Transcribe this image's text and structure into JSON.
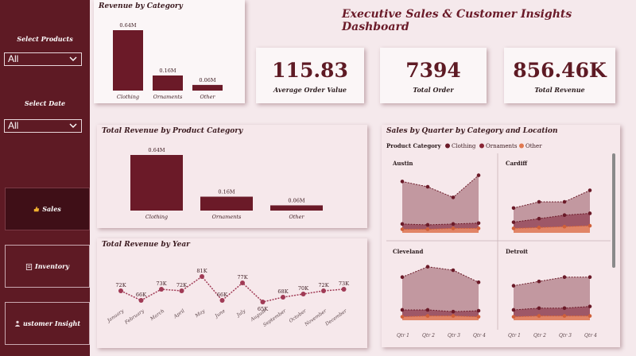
{
  "dashboard_title": "Executive Sales & Customer Insights Dashboard",
  "colors": {
    "primary": "#6b1a28",
    "sidebar": "#5e1a24",
    "background": "#f5e9ec",
    "clothing": "#6b1a28",
    "ornaments": "#8a2535",
    "other": "#e07850"
  },
  "sidebar": {
    "select_products_label": "Select Products",
    "select_products_value": "All",
    "select_date_label": "Select Date",
    "select_date_value": "All",
    "nav": [
      {
        "label": "Sales",
        "icon": "thumbs-up-icon",
        "active": true
      },
      {
        "label": "Inventory",
        "icon": "clipboard-icon",
        "active": false
      },
      {
        "label": "ustomer Insight",
        "icon": "person-icon",
        "active": false
      }
    ]
  },
  "kpis": [
    {
      "value": "115.83",
      "label": "Average Order Value"
    },
    {
      "value": "7394",
      "label": "Total Order"
    },
    {
      "value": "856.46K",
      "label": "Total Revenue"
    }
  ],
  "chart_data": [
    {
      "type": "bar",
      "id": "revenue_by_category_small",
      "title": "Revenue by Category",
      "categories": [
        "Clothing",
        "Ornaments",
        "Other"
      ],
      "values": [
        0.64,
        0.16,
        0.06
      ],
      "data_labels": [
        "0.64M",
        "0.16M",
        "0.06M"
      ],
      "ylim": [
        0,
        0.64
      ]
    },
    {
      "type": "bar",
      "id": "total_revenue_by_product_category",
      "title": "Total Revenue by Product Category",
      "categories": [
        "Clothing",
        "Ornaments",
        "Other"
      ],
      "values": [
        0.64,
        0.16,
        0.06
      ],
      "data_labels": [
        "0.64M",
        "0.16M",
        "0.06M"
      ],
      "ylim": [
        0,
        0.64
      ]
    },
    {
      "type": "line",
      "id": "total_revenue_by_year",
      "title": "Total Revenue by Year",
      "categories": [
        "January",
        "February",
        "March",
        "April",
        "May",
        "June",
        "July",
        "August",
        "September",
        "October",
        "November",
        "December"
      ],
      "values": [
        72,
        66,
        73,
        72,
        81,
        66,
        77,
        65,
        68,
        70,
        72,
        73
      ],
      "data_labels": [
        "72K",
        "66K",
        "73K",
        "72K",
        "81K",
        "66K",
        "77K",
        "65K",
        "68K",
        "70K",
        "72K",
        "73K"
      ],
      "ylim": [
        62,
        84
      ]
    },
    {
      "type": "area",
      "id": "sales_by_quarter",
      "title": "Sales by Quarter by Category and Location",
      "legend_title": "Product Category",
      "legend": [
        "Clothing",
        "Ornaments",
        "Other"
      ],
      "x_labels": [
        "Qtr 1",
        "Qtr 2",
        "Qtr 3",
        "Qtr 4"
      ],
      "ylim": [
        0,
        70
      ],
      "panels": [
        {
          "location": "Austin",
          "series": [
            {
              "name": "Clothing",
              "values": [
                58,
                52,
                40,
                65
              ]
            },
            {
              "name": "Ornaments",
              "values": [
                10,
                9,
                10,
                11
              ]
            },
            {
              "name": "Other",
              "values": [
                4,
                4,
                5,
                5
              ]
            }
          ]
        },
        {
          "location": "Cardiff",
          "series": [
            {
              "name": "Clothing",
              "values": [
                28,
                35,
                35,
                48
              ]
            },
            {
              "name": "Ornaments",
              "values": [
                12,
                16,
                20,
                22
              ]
            },
            {
              "name": "Other",
              "values": [
                5,
                6,
                7,
                8
              ]
            }
          ]
        },
        {
          "location": "Cleveland",
          "series": [
            {
              "name": "Clothing",
              "values": [
                50,
                62,
                58,
                44
              ]
            },
            {
              "name": "Ornaments",
              "values": [
                12,
                12,
                10,
                11
              ]
            },
            {
              "name": "Other",
              "values": [
                4,
                5,
                5,
                4
              ]
            }
          ]
        },
        {
          "location": "Detroit",
          "series": [
            {
              "name": "Clothing",
              "values": [
                40,
                45,
                50,
                50
              ]
            },
            {
              "name": "Ornaments",
              "values": [
                12,
                14,
                14,
                16
              ]
            },
            {
              "name": "Other",
              "values": [
                4,
                5,
                5,
                5
              ]
            }
          ]
        }
      ]
    }
  ]
}
